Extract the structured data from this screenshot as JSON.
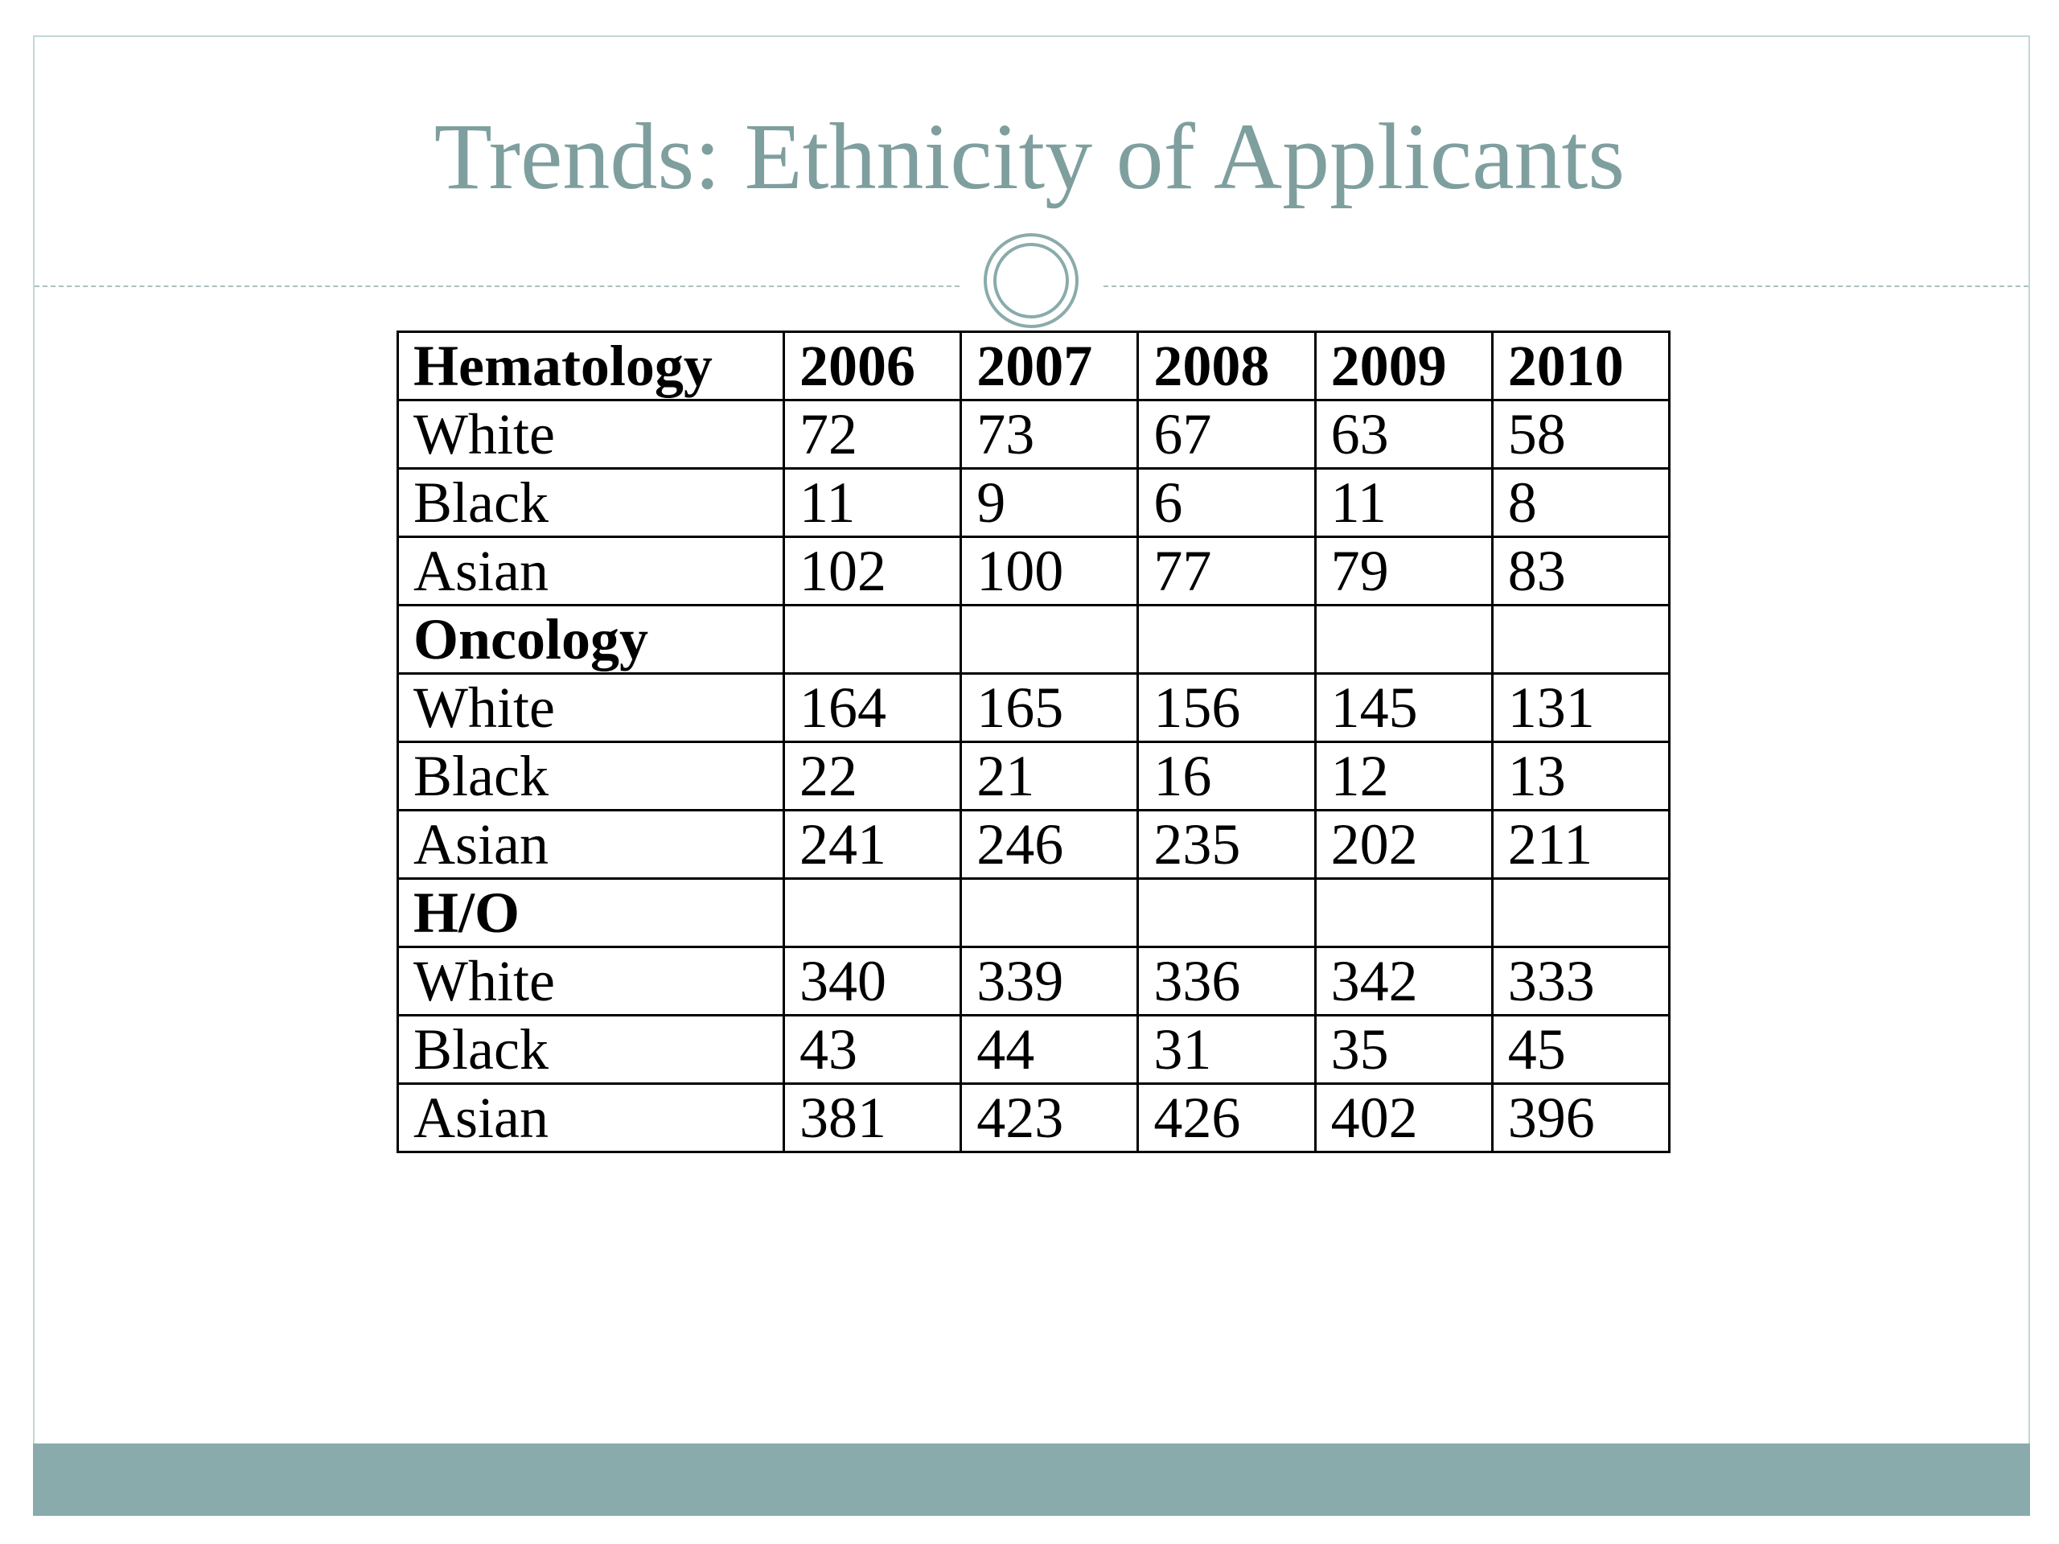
{
  "title": "Trends: Ethnicity of Applicants",
  "table": {
    "header": [
      "Hematology",
      "2006",
      "2007",
      "2008",
      "2009",
      "2010"
    ],
    "rows": [
      [
        "White",
        72,
        73,
        67,
        63,
        58
      ],
      [
        "Black",
        11,
        9,
        6,
        11,
        8
      ],
      [
        "Asian",
        102,
        100,
        77,
        79,
        83
      ],
      [
        "Oncology"
      ],
      [
        "White",
        164,
        165,
        156,
        145,
        131
      ],
      [
        "Black",
        22,
        21,
        16,
        12,
        13
      ],
      [
        "Asian",
        241,
        246,
        235,
        202,
        211
      ],
      [
        "H/O"
      ],
      [
        "White",
        340,
        339,
        336,
        342,
        333
      ],
      [
        "Black",
        43,
        44,
        31,
        35,
        45
      ],
      [
        "Asian",
        381,
        423,
        426,
        402,
        396
      ]
    ]
  }
}
